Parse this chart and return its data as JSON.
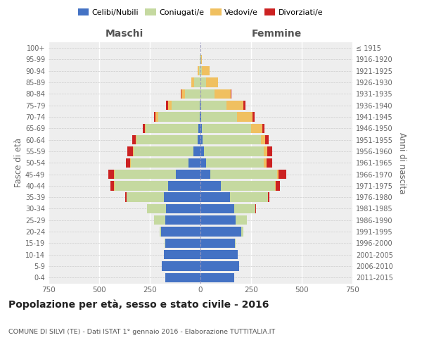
{
  "age_groups": [
    "0-4",
    "5-9",
    "10-14",
    "15-19",
    "20-24",
    "25-29",
    "30-34",
    "35-39",
    "40-44",
    "45-49",
    "50-54",
    "55-59",
    "60-64",
    "65-69",
    "70-74",
    "75-79",
    "80-84",
    "85-89",
    "90-94",
    "95-99",
    "100+"
  ],
  "birth_years": [
    "2011-2015",
    "2006-2010",
    "2001-2005",
    "1996-2000",
    "1991-1995",
    "1986-1990",
    "1981-1985",
    "1976-1980",
    "1971-1975",
    "1966-1970",
    "1961-1965",
    "1956-1960",
    "1951-1955",
    "1946-1950",
    "1941-1945",
    "1936-1940",
    "1931-1935",
    "1926-1930",
    "1921-1925",
    "1916-1920",
    "≤ 1915"
  ],
  "males": {
    "celibi": [
      175,
      190,
      180,
      175,
      195,
      175,
      170,
      180,
      160,
      120,
      60,
      35,
      15,
      10,
      5,
      3,
      0,
      0,
      0,
      0,
      0
    ],
    "coniugati": [
      0,
      0,
      0,
      3,
      8,
      55,
      95,
      185,
      265,
      305,
      285,
      295,
      300,
      260,
      205,
      140,
      75,
      30,
      8,
      2,
      0
    ],
    "vedovi": [
      0,
      0,
      0,
      0,
      0,
      0,
      0,
      0,
      2,
      2,
      2,
      4,
      4,
      5,
      12,
      18,
      18,
      15,
      5,
      0,
      0
    ],
    "divorziati": [
      0,
      0,
      0,
      0,
      0,
      0,
      0,
      8,
      18,
      28,
      22,
      28,
      18,
      8,
      8,
      8,
      5,
      0,
      0,
      0,
      0
    ]
  },
  "females": {
    "nubili": [
      165,
      190,
      185,
      170,
      200,
      175,
      165,
      145,
      100,
      50,
      28,
      18,
      12,
      8,
      4,
      0,
      0,
      0,
      0,
      0,
      0
    ],
    "coniugate": [
      0,
      0,
      0,
      2,
      12,
      55,
      105,
      188,
      268,
      328,
      285,
      295,
      285,
      242,
      178,
      128,
      70,
      28,
      8,
      2,
      0
    ],
    "vedove": [
      0,
      0,
      0,
      0,
      0,
      0,
      0,
      0,
      4,
      8,
      12,
      18,
      22,
      55,
      75,
      85,
      80,
      60,
      38,
      5,
      0
    ],
    "divorziate": [
      0,
      0,
      0,
      0,
      0,
      0,
      4,
      8,
      22,
      38,
      28,
      22,
      18,
      12,
      12,
      8,
      4,
      0,
      0,
      0,
      0
    ]
  },
  "colors": {
    "celibi": "#4472c4",
    "coniugati": "#c5d9a0",
    "vedovi": "#f0c060",
    "divorziati": "#cc2222"
  },
  "xlim": 750,
  "title": "Popolazione per età, sesso e stato civile - 2016",
  "subtitle": "COMUNE DI SILVI (TE) - Dati ISTAT 1° gennaio 2016 - Elaborazione TUTTITALIA.IT",
  "legend_labels": [
    "Celibi/Nubili",
    "Coniugati/e",
    "Vedovi/e",
    "Divorziati/e"
  ],
  "xlabel_left": "Maschi",
  "xlabel_right": "Femmine",
  "ylabel_left": "Fasce di età",
  "ylabel_right": "Anni di nascita",
  "bg_color": "#eeeeee"
}
